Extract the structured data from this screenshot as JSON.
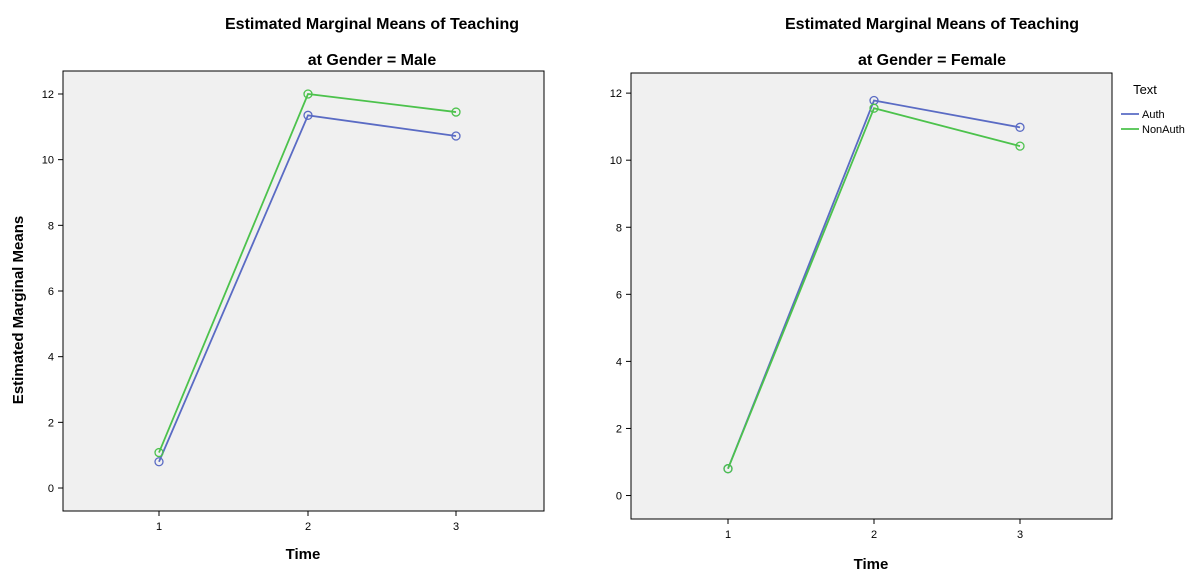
{
  "chart_data": [
    {
      "type": "line",
      "title": "Estimated Marginal Means of Teaching",
      "subtitle": "at Gender = Male",
      "xlabel": "Time",
      "ylabel": "Estimated Marginal Means",
      "categories": [
        "1",
        "2",
        "3"
      ],
      "ylim": [
        -0.7,
        12.7
      ],
      "yticks": [
        0,
        2,
        4,
        6,
        8,
        10,
        12
      ],
      "grid": false,
      "series": [
        {
          "name": "Auth",
          "color": "#5a6bc4",
          "values": [
            0.8,
            11.35,
            10.72
          ]
        },
        {
          "name": "NonAuth",
          "color": "#4cc24c",
          "values": [
            1.08,
            12.0,
            11.45
          ]
        }
      ]
    },
    {
      "type": "line",
      "title": "Estimated Marginal Means of Teaching",
      "subtitle": "at Gender = Female",
      "xlabel": "Time",
      "ylabel": "",
      "categories": [
        "1",
        "2",
        "3"
      ],
      "ylim": [
        -0.7,
        12.6
      ],
      "yticks": [
        0,
        2,
        4,
        6,
        8,
        10,
        12
      ],
      "grid": false,
      "legend": {
        "title": "Text",
        "position": "right"
      },
      "series": [
        {
          "name": "Auth",
          "color": "#5a6bc4",
          "values": [
            0.8,
            11.78,
            10.98
          ]
        },
        {
          "name": "NonAuth",
          "color": "#4cc24c",
          "values": [
            0.8,
            11.55,
            10.42
          ]
        }
      ]
    }
  ]
}
